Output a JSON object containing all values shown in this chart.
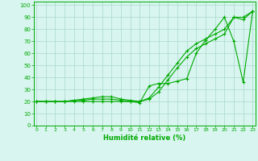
{
  "xlabel": "Humidité relative (%)",
  "bg_color": "#d8f5f0",
  "grid_color": "#b0ddd0",
  "line_color": "#00aa00",
  "x_ticks": [
    0,
    1,
    2,
    3,
    4,
    5,
    6,
    7,
    8,
    9,
    10,
    11,
    12,
    13,
    14,
    15,
    16,
    17,
    18,
    19,
    20,
    21,
    22,
    23
  ],
  "y_ticks": [
    0,
    10,
    20,
    30,
    40,
    50,
    60,
    70,
    80,
    90,
    100
  ],
  "xlim": [
    -0.3,
    23.3
  ],
  "ylim": [
    0,
    103
  ],
  "series": [
    [
      20,
      20,
      20,
      20,
      20,
      20,
      20,
      20,
      20,
      20,
      20,
      19,
      33,
      35,
      35,
      37,
      39,
      60,
      71,
      80,
      90,
      70,
      36,
      95
    ],
    [
      20,
      20,
      20,
      20,
      21,
      21,
      22,
      22,
      22,
      21,
      20,
      20,
      22,
      28,
      38,
      48,
      57,
      64,
      68,
      72,
      76,
      90,
      88,
      95
    ],
    [
      20,
      20,
      20,
      20,
      21,
      22,
      23,
      24,
      24,
      22,
      21,
      20,
      23,
      32,
      42,
      52,
      62,
      68,
      72,
      76,
      80,
      90,
      90,
      95
    ]
  ]
}
